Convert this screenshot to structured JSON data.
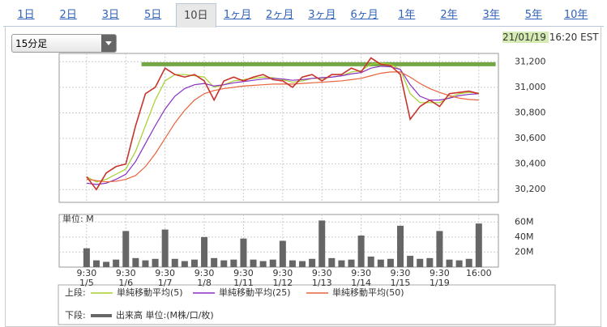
{
  "tabs": [
    "1日",
    "2日",
    "3日",
    "5日",
    "10日",
    "1ヶ月",
    "2ヶ月",
    "3ヶ月",
    "6ヶ月",
    "1年",
    "2年",
    "3年",
    "5年",
    "10年"
  ],
  "selected_tab": 4,
  "dropdown": "15分足",
  "timestamp": "21/01/19 16:20 EST",
  "legend": {
    "upper": "上段:",
    "lower": "下段:"
  },
  "chart_data": [
    {
      "type": "line",
      "x": [
        0,
        0.25,
        0.5,
        0.75,
        1,
        1.25,
        1.5,
        1.75,
        2,
        2.25,
        2.5,
        2.75,
        3,
        3.25,
        3.5,
        3.75,
        4,
        4.25,
        4.5,
        4.75,
        5,
        5.25,
        5.5,
        5.75,
        6,
        6.25,
        6.5,
        6.75,
        7,
        7.25,
        7.5,
        7.75,
        8,
        8.25,
        8.5,
        8.75,
        9,
        9.25,
        9.5,
        9.75,
        10
      ],
      "price": {
        "color": "#c8342c",
        "values": [
          30300,
          30200,
          30330,
          30380,
          30400,
          30700,
          30950,
          31000,
          31150,
          31100,
          31080,
          31100,
          31050,
          30900,
          31050,
          31080,
          31050,
          31080,
          31100,
          31060,
          31050,
          31000,
          31080,
          31100,
          31050,
          31100,
          31100,
          31150,
          31120,
          31230,
          31180,
          31170,
          31100,
          30750,
          30850,
          30900,
          30850,
          30950,
          30960,
          30970,
          30950
        ]
      },
      "series": [
        {
          "name": "単純移動平均(5)",
          "color": "#a6d02c",
          "values": [
            30300,
            30260,
            30280,
            30320,
            30360,
            30500,
            30700,
            30900,
            31050,
            31100,
            31100,
            31090,
            31080,
            31000,
            31020,
            31050,
            31060,
            31070,
            31080,
            31075,
            31060,
            31040,
            31050,
            31070,
            31070,
            31080,
            31090,
            31120,
            31130,
            31180,
            31190,
            31180,
            31140,
            30950,
            30880,
            30880,
            30880,
            30920,
            30950,
            30960,
            30955
          ]
        },
        {
          "name": "単純移動平均(25)",
          "color": "#8a2fc4",
          "values": [
            30250,
            30240,
            30250,
            30280,
            30320,
            30420,
            30560,
            30700,
            30830,
            30930,
            30990,
            31020,
            31030,
            31010,
            31020,
            31035,
            31045,
            31055,
            31065,
            31070,
            31065,
            31055,
            31060,
            31070,
            31075,
            31080,
            31090,
            31105,
            31115,
            31150,
            31165,
            31160,
            31140,
            31020,
            30930,
            30900,
            30900,
            30915,
            30935,
            30945,
            30950
          ]
        },
        {
          "name": "単純移動平均(50)",
          "color": "#e8643c",
          "values": [
            30280,
            30270,
            30260,
            30265,
            30280,
            30310,
            30380,
            30480,
            30600,
            30720,
            30820,
            30900,
            30950,
            30975,
            30990,
            31000,
            31010,
            31015,
            31020,
            31025,
            31025,
            31025,
            31030,
            31035,
            31040,
            31045,
            31050,
            31060,
            31070,
            31090,
            31110,
            31120,
            31120,
            31080,
            31030,
            30990,
            30960,
            30935,
            30915,
            30905,
            30900
          ]
        }
      ],
      "hline": {
        "value": 31180,
        "x": [
          1.4,
          10.43
        ],
        "color": "#74a646"
      },
      "xlim": [
        -0.7,
        10.5
      ],
      "ylim": [
        30100,
        31265
      ],
      "yticks": [
        {
          "value": 30200,
          "label": "30,200"
        },
        {
          "value": 30400,
          "label": "30,400"
        },
        {
          "value": 30600,
          "label": "30,600"
        },
        {
          "value": 30800,
          "label": "30,800"
        },
        {
          "value": 31000,
          "label": "31,000"
        },
        {
          "value": 31200,
          "label": "31,200"
        }
      ],
      "grid": true
    },
    {
      "type": "bar",
      "title": "単位: M",
      "x": [
        0,
        0.25,
        0.5,
        0.75,
        1,
        1.25,
        1.5,
        1.75,
        2,
        2.25,
        2.5,
        2.75,
        3,
        3.25,
        3.5,
        3.75,
        4,
        4.25,
        4.5,
        4.75,
        5,
        5.25,
        5.5,
        5.75,
        6,
        6.25,
        6.5,
        6.75,
        7,
        7.25,
        7.5,
        7.75,
        8,
        8.25,
        8.5,
        8.75,
        9,
        9.25,
        9.5,
        9.75,
        10
      ],
      "series": [
        {
          "name": "出来高 単位:(M株/口/枚)",
          "color": "#666666",
          "values": [
            25,
            9,
            7,
            10,
            48,
            12,
            9,
            11,
            50,
            11,
            8,
            10,
            40,
            12,
            9,
            10,
            38,
            10,
            8,
            10,
            35,
            9,
            8,
            11,
            62,
            12,
            9,
            10,
            42,
            14,
            10,
            11,
            55,
            15,
            11,
            12,
            48,
            10,
            9,
            11,
            58
          ]
        }
      ],
      "xlim": [
        -0.7,
        10.5
      ],
      "ylim": [
        0,
        70
      ],
      "yticks": [
        {
          "value": 20,
          "label": "20M"
        },
        {
          "value": 40,
          "label": "40M"
        },
        {
          "value": 60,
          "label": "60M"
        }
      ],
      "xticks": [
        {
          "value": 0,
          "label": "9:30"
        },
        {
          "value": 1,
          "label": "9:30"
        },
        {
          "value": 2,
          "label": "9:30"
        },
        {
          "value": 3,
          "label": "9:30"
        },
        {
          "value": 4,
          "label": "9:30"
        },
        {
          "value": 5,
          "label": "9:30"
        },
        {
          "value": 6,
          "label": "9:30"
        },
        {
          "value": 7,
          "label": "9:30"
        },
        {
          "value": 8,
          "label": "9:30"
        },
        {
          "value": 9,
          "label": "9:30"
        },
        {
          "value": 10,
          "label": "16:00"
        }
      ],
      "xtick_dates": [
        "1/5",
        "1/6",
        "1/7",
        "1/8",
        "1/11",
        "1/12",
        "1/13",
        "1/14",
        "1/15",
        "1/19",
        null
      ],
      "grid": true
    }
  ]
}
